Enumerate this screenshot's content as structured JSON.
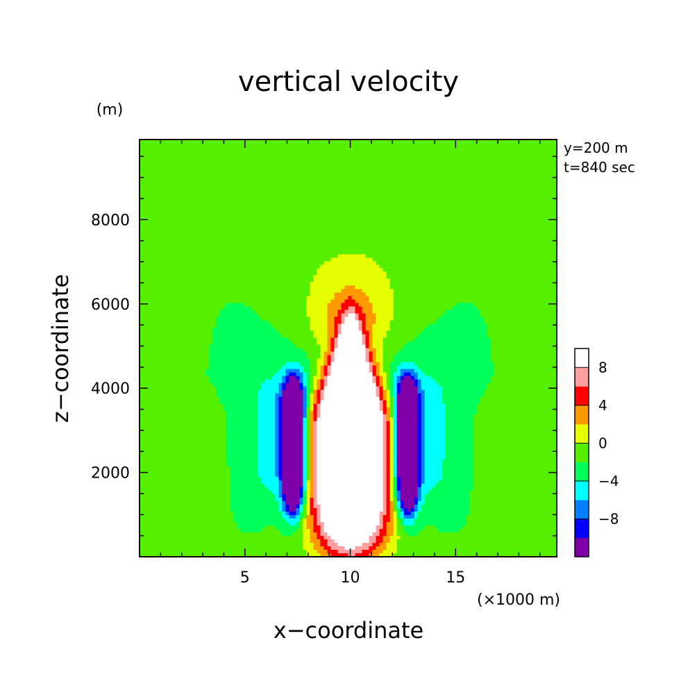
{
  "chart_data": {
    "type": "heatmap",
    "title": "vertical velocity",
    "xlabel": "x−coordinate",
    "ylabel": "z−coordinate",
    "x_unit": "(×1000 m)",
    "y_unit": "(m)",
    "annotations": [
      "y=200 m",
      "t=840 sec"
    ],
    "xlim": [
      0,
      19.8
    ],
    "ylim": [
      0,
      9900
    ],
    "x_ticks": [
      5,
      10,
      15
    ],
    "x_tick_labels": [
      "5",
      "10",
      "15"
    ],
    "y_ticks": [
      2000,
      4000,
      6000,
      8000
    ],
    "y_tick_labels": [
      "2000",
      "4000",
      "6000",
      "8000"
    ],
    "colorbar": {
      "levels": [
        -10,
        -8,
        -6,
        -4,
        -2,
        0,
        2,
        4,
        6,
        8,
        10
      ],
      "colors": [
        "#7f00a8",
        "#0000ff",
        "#0080ff",
        "#00ffff",
        "#00ff5a",
        "#55f000",
        "#e6ff00",
        "#ff9900",
        "#ff0000",
        "#ffa0a0"
      ],
      "tick_values": [
        -8,
        -4,
        0,
        4,
        8
      ],
      "tick_labels": [
        "−8",
        "−4",
        "0",
        "4",
        "8"
      ],
      "over_color": "#ffffff"
    },
    "features": [
      {
        "name": "central updraft",
        "x_center": 10.0,
        "x_range": [
          8.2,
          11.8
        ],
        "z_range": [
          200,
          5500
        ],
        "peak_sign": "positive"
      },
      {
        "name": "left downdraft",
        "x_range": [
          6.5,
          8.3
        ],
        "z_range": [
          500,
          4600
        ],
        "peak_sign": "negative"
      },
      {
        "name": "right downdraft",
        "x_range": [
          11.8,
          13.6
        ],
        "z_range": [
          500,
          4600
        ],
        "peak_sign": "negative"
      },
      {
        "name": "upper weak ascent",
        "x_range": [
          5.4,
          14.7
        ],
        "z_range": [
          4800,
          9900
        ],
        "peak_sign": "positive"
      }
    ]
  }
}
